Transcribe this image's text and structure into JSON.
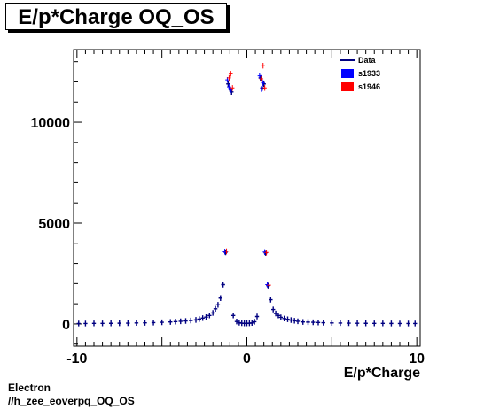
{
  "title": "E/p*Charge OQ_OS",
  "footer": {
    "line1": "Electron",
    "line2": "//h_zee_eoverpq_OQ_OS"
  },
  "chart_data": {
    "type": "scatter",
    "title": "E/p*Charge OQ_OS",
    "xlabel": "E/p*Charge",
    "ylabel": "",
    "xlim": [
      -10.2,
      10.2
    ],
    "ylim": [
      -1100,
      13600
    ],
    "xticks": [
      -10,
      0,
      10
    ],
    "xtick_labels": [
      "-10",
      "0",
      "10"
    ],
    "yticks": [
      0,
      5000,
      10000
    ],
    "ytick_labels": [
      "0",
      "5000",
      "10000"
    ],
    "legend_position": "top-right",
    "grid": false,
    "legend": [
      {
        "label": "Data",
        "kind": "line",
        "color": "#000080"
      },
      {
        "label": "s1933",
        "kind": "box",
        "color": "#0000ff"
      },
      {
        "label": "s1946",
        "kind": "box",
        "color": "#ff0000"
      }
    ],
    "series": [
      {
        "name": "Data",
        "color": "#000080",
        "x": [
          -9.9,
          -9.5,
          -9.0,
          -8.5,
          -8.0,
          -7.5,
          -7.0,
          -6.5,
          -6.0,
          -5.5,
          -5.0,
          -4.5,
          -4.2,
          -3.9,
          -3.6,
          -3.3,
          -3.0,
          -2.8,
          -2.6,
          -2.4,
          -2.2,
          -2.0,
          -1.85,
          -1.7,
          -1.55,
          -1.4,
          -1.25,
          -1.1,
          -1.0,
          -0.9,
          -0.8,
          -0.6,
          -0.45,
          -0.3,
          -0.15,
          0.0,
          0.15,
          0.3,
          0.45,
          0.6,
          0.8,
          0.9,
          1.0,
          1.1,
          1.25,
          1.4,
          1.55,
          1.7,
          1.85,
          2.0,
          2.2,
          2.4,
          2.6,
          2.8,
          3.0,
          3.3,
          3.6,
          3.9,
          4.2,
          4.5,
          5.0,
          5.5,
          6.0,
          6.5,
          7.0,
          7.5,
          8.0,
          8.5,
          9.0,
          9.5,
          9.9
        ],
        "y": [
          20,
          22,
          25,
          28,
          30,
          35,
          40,
          48,
          55,
          65,
          80,
          100,
          115,
          130,
          150,
          170,
          200,
          240,
          290,
          340,
          420,
          550,
          750,
          950,
          1280,
          1950,
          3550,
          11900,
          11650,
          11500,
          420,
          120,
          60,
          40,
          30,
          30,
          35,
          50,
          110,
          370,
          12200,
          11700,
          11900,
          3520,
          1900,
          1200,
          720,
          520,
          420,
          330,
          270,
          230,
          190,
          160,
          130,
          100,
          90,
          80,
          70,
          60,
          48,
          42,
          38,
          34,
          30,
          28,
          26,
          24,
          22,
          21,
          20
        ]
      },
      {
        "name": "s1933",
        "color": "#0000ff",
        "x": [
          -1.25,
          -1.1,
          -1.0,
          -0.9,
          0.8,
          0.9,
          1.0,
          1.1,
          1.25
        ],
        "y": [
          3580,
          12100,
          11750,
          11600,
          12300,
          11650,
          11950,
          3560,
          1950
        ]
      },
      {
        "name": "s1946",
        "color": "#ff0000",
        "x": [
          -1.25,
          -1.1,
          -1.0,
          -0.9,
          0.8,
          0.9,
          1.0,
          1.1,
          1.25
        ],
        "y": [
          3600,
          12200,
          12400,
          11700,
          12150,
          12800,
          11700,
          3540,
          1920
        ]
      }
    ]
  }
}
